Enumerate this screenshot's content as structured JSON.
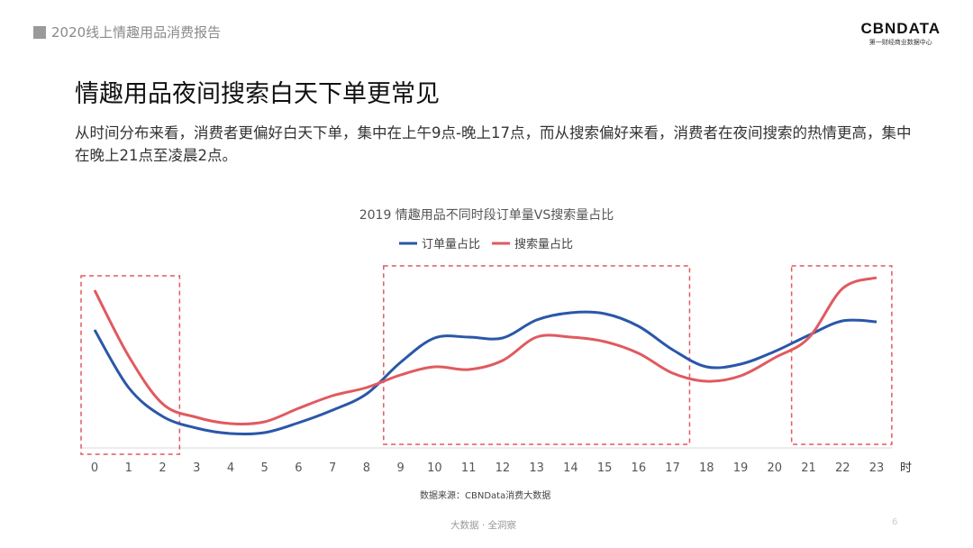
{
  "header": {
    "report_title": "2020线上情趣用品消费报告"
  },
  "logo": {
    "name": "CBNDATA",
    "tagline": "第一财经商业数据中心"
  },
  "slide": {
    "title": "情趣用品夜间搜索白天下单更常见",
    "description": "从时间分布来看，消费者更偏好白天下单，集中在上午9点-晚上17点，而从搜索偏好来看，消费者在夜间搜索的热情更高，集中在晚上21点至凌晨2点。"
  },
  "chart_data": {
    "type": "line",
    "title": "2019 情趣用品不同时段订单量VS搜索量占比",
    "xlabel": "时",
    "categories": [
      "0",
      "1",
      "2",
      "3",
      "4",
      "5",
      "6",
      "7",
      "8",
      "9",
      "10",
      "11",
      "12",
      "13",
      "14",
      "15",
      "16",
      "17",
      "18",
      "19",
      "20",
      "21",
      "22",
      "23"
    ],
    "series": [
      {
        "name": "订单量占比",
        "color": "#2a57a8",
        "values": [
          13.1,
          6.7,
          3.5,
          2.2,
          1.6,
          1.7,
          2.8,
          4.2,
          6.0,
          9.5,
          12.2,
          12.3,
          12.2,
          14.2,
          15.0,
          14.9,
          13.5,
          10.9,
          9.0,
          9.3,
          10.7,
          12.5,
          14.1,
          14.0
        ]
      },
      {
        "name": "搜索量占比",
        "color": "#e05a5f",
        "values": [
          17.5,
          10.2,
          4.9,
          3.4,
          2.7,
          2.9,
          4.4,
          5.8,
          6.7,
          8.1,
          9.0,
          8.7,
          9.7,
          12.3,
          12.3,
          11.8,
          10.5,
          8.3,
          7.4,
          8.0,
          10.0,
          12.2,
          17.7,
          18.9
        ]
      }
    ],
    "y_axis_shown": false,
    "grid": false,
    "legend": "top",
    "smooth": true,
    "highlight_ranges": [
      [
        "0",
        "2"
      ],
      [
        "9",
        "17"
      ],
      [
        "21",
        "23"
      ]
    ],
    "highlight_color": "#e05a5f",
    "source": "数据来源：CBNData消费大数据"
  },
  "footer": {
    "slogan": "大数据 · 全洞察",
    "page_number": "6"
  }
}
